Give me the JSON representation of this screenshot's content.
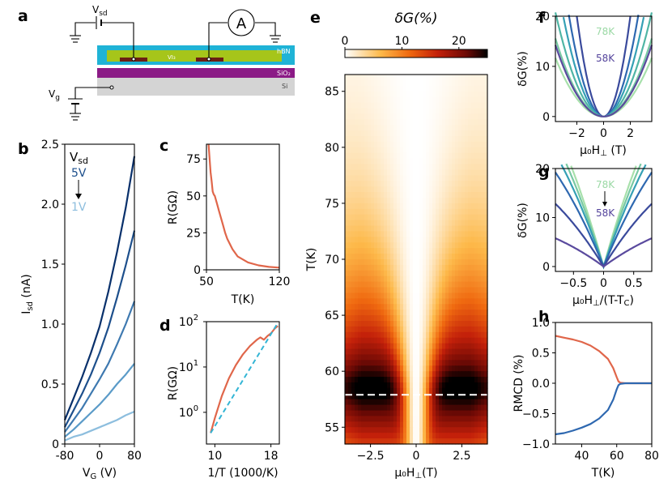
{
  "panel_letters": {
    "a": "a",
    "b": "b",
    "c": "c",
    "d": "d",
    "e": "e",
    "f": "f",
    "g": "g",
    "h": "h"
  },
  "schematic": {
    "vsd": "V",
    "vsd_sub": "sd",
    "vg": "V",
    "vg_sub": "g",
    "ammeter": "A",
    "layers": [
      {
        "name": "hBN",
        "color": "#1fb3d6"
      },
      {
        "name": "VI₃",
        "color": "#a6c51a"
      },
      {
        "name": "SiO₂",
        "color": "#8b1a86"
      },
      {
        "name": "Si",
        "color": "#b4b4b4"
      }
    ],
    "electrode_color": "#6b1f13"
  },
  "chart_data": [
    {
      "id": "b",
      "type": "line",
      "xlabel": "V",
      "xlabel_sub": "G",
      "xlabel_unit": " (V)",
      "ylabel": "I",
      "ylabel_sub": "sd",
      "ylabel_unit": " (nA)",
      "xlim": [
        -80,
        80
      ],
      "ylim": [
        0,
        2.5
      ],
      "xticks": [
        -80,
        0,
        80
      ],
      "yticks": [
        0,
        0.5,
        1.0,
        1.5,
        2.0,
        2.5
      ],
      "ytick_labels": [
        "0",
        "0.5",
        "1.0",
        "1.5",
        "2.0",
        "2.5"
      ],
      "legend": {
        "title": "V",
        "title_sub": "sd",
        "top": "5V",
        "bottom": "1V"
      },
      "series": [
        {
          "label": "5V",
          "color": "#08306b",
          "x": [
            -80,
            -60,
            -40,
            -20,
            0,
            20,
            40,
            60,
            80
          ],
          "y": [
            0.2,
            0.38,
            0.56,
            0.76,
            0.98,
            1.27,
            1.6,
            1.97,
            2.4
          ]
        },
        {
          "color": "#1d4f8c",
          "x": [
            -80,
            -60,
            -40,
            -20,
            0,
            20,
            40,
            60,
            80
          ],
          "y": [
            0.14,
            0.28,
            0.42,
            0.58,
            0.76,
            0.97,
            1.22,
            1.49,
            1.78
          ]
        },
        {
          "color": "#3e79b0",
          "x": [
            -80,
            -60,
            -40,
            -20,
            0,
            20,
            40,
            60,
            80
          ],
          "y": [
            0.1,
            0.2,
            0.3,
            0.42,
            0.54,
            0.67,
            0.83,
            1.0,
            1.19
          ]
        },
        {
          "color": "#5b9bc8",
          "x": [
            -80,
            -60,
            -40,
            -20,
            0,
            20,
            40,
            60,
            80
          ],
          "y": [
            0.06,
            0.12,
            0.19,
            0.26,
            0.33,
            0.41,
            0.5,
            0.58,
            0.67
          ]
        },
        {
          "label": "1V",
          "color": "#8dbede",
          "x": [
            -80,
            -60,
            -40,
            -20,
            0,
            20,
            40,
            60,
            80
          ],
          "y": [
            0.03,
            0.06,
            0.08,
            0.11,
            0.14,
            0.17,
            0.2,
            0.24,
            0.27
          ]
        }
      ]
    },
    {
      "id": "c",
      "type": "line",
      "xlabel": "T(K)",
      "ylabel": "R(GΩ)",
      "xlim": [
        50,
        120
      ],
      "ylim": [
        0,
        85
      ],
      "xticks": [
        50,
        120
      ],
      "yticks": [
        0,
        25,
        50,
        75
      ],
      "series": [
        {
          "color": "#e0664a",
          "x": [
            52,
            53,
            54,
            55,
            56,
            57,
            58,
            60,
            62,
            64,
            66,
            68,
            70,
            75,
            80,
            90,
            100,
            110,
            120
          ],
          "y": [
            85,
            75,
            66,
            60,
            53,
            51,
            50,
            45,
            40,
            35,
            30,
            25,
            21,
            14,
            9,
            5,
            3,
            2,
            1.5
          ]
        }
      ]
    },
    {
      "id": "d",
      "type": "line",
      "xlabel": "1/T (1000/K)",
      "ylabel": "R(GΩ)",
      "xlim": [
        8.8,
        19.2
      ],
      "yscale": "log",
      "ylim": [
        0.2,
        100
      ],
      "xticks": [
        10,
        18
      ],
      "yticks": [
        1,
        10,
        100
      ],
      "ytick_labels": [
        [
          "10",
          "0"
        ],
        [
          "10",
          "1"
        ],
        [
          "10",
          "2"
        ]
      ],
      "series": [
        {
          "color": "#e0664a",
          "x": [
            9.4,
            10,
            11,
            12,
            13,
            14,
            15,
            16,
            16.5,
            17,
            17.5,
            18,
            18.6,
            19
          ],
          "y": [
            0.35,
            0.75,
            2.3,
            5.6,
            11,
            19,
            29,
            40,
            45,
            40,
            48,
            55,
            72,
            80
          ]
        },
        {
          "color": "#33b5d5",
          "dash": true,
          "x": [
            9.4,
            19.0
          ],
          "y": [
            0.35,
            95
          ]
        }
      ]
    },
    {
      "id": "e",
      "type": "heatmap",
      "colorbar_label": "δG(%)",
      "colorbar_ticks": [
        0,
        10,
        20
      ],
      "crange": [
        0,
        25
      ],
      "colormap": "gist_heat_r",
      "xlabel": "μ₀H",
      "xlabel_sub": "⊥",
      "xlabel_unit": "(T)",
      "ylabel": "T(K)",
      "xlim": [
        -3.9,
        3.9
      ],
      "ylim": [
        53.5,
        86.5
      ],
      "xticks": [
        -2.5,
        0,
        2.5
      ],
      "xtick_labels": [
        "−2.5",
        "0",
        "2.5"
      ],
      "yticks": [
        55,
        60,
        65,
        70,
        75,
        80,
        85
      ],
      "dashed_line_T": 57.9
    },
    {
      "id": "f",
      "type": "line",
      "xlabel": "μ₀H",
      "xlabel_sub": "⊥",
      "xlabel_unit": " (T)",
      "ylabel": "δG(%)",
      "xlim": [
        -3.6,
        3.6
      ],
      "ylim": [
        -1,
        20
      ],
      "xticks": [
        -2,
        0,
        2
      ],
      "xtick_labels": [
        "−2",
        "0",
        "2"
      ],
      "yticks": [
        0,
        10,
        20
      ],
      "annotations": [
        {
          "text": "78K",
          "color": "#9bd9a5"
        },
        {
          "text": "58K",
          "color": "#54449c"
        }
      ],
      "series": [
        {
          "color": "#3a4a9c",
          "curv": 5.0
        },
        {
          "color": "#2e68b0",
          "curv": 3.0
        },
        {
          "color": "#35a0b5",
          "curv": 2.2
        },
        {
          "color": "#4fb5a4",
          "curv": 1.6
        },
        {
          "color": "#78c9a3",
          "curv": 1.2
        },
        {
          "color": "#a7e0ab",
          "curv": 0.9
        },
        {
          "color": "#5a4a9e",
          "curv": 1.1
        }
      ]
    },
    {
      "id": "g",
      "type": "line",
      "xlabel": "μ₀H",
      "xlabel_sub": "⊥",
      "xlabel_unit": "/(T-T",
      "xlabel_unit_sub": "C",
      "xlabel_end": ")",
      "ylabel": "δG(%)",
      "xlim": [
        -0.8,
        0.8
      ],
      "ylim": [
        -1,
        20
      ],
      "xticks": [
        -0.5,
        0,
        0.5
      ],
      "xtick_labels": [
        "−0.5",
        "0",
        "0.5"
      ],
      "yticks": [
        0,
        10,
        20
      ],
      "annotations": [
        {
          "text": "78K",
          "color": "#9bd9a5"
        },
        {
          "text": "58K",
          "color": "#54449c"
        }
      ],
      "series": [
        {
          "color": "#a7e0ab",
          "slope": 44
        },
        {
          "color": "#78c9a3",
          "slope": 40
        },
        {
          "color": "#35a0b5",
          "slope": 36
        },
        {
          "color": "#2e68b0",
          "slope": 30
        },
        {
          "color": "#3a4a9c",
          "slope": 20
        },
        {
          "color": "#5a4a9e",
          "slope": 9
        }
      ]
    },
    {
      "id": "h",
      "type": "line",
      "xlabel": "T(K)",
      "ylabel": "RMCD (%)",
      "xlim": [
        25,
        80
      ],
      "ylim": [
        -1.0,
        1.0
      ],
      "xticks": [
        40,
        60,
        80
      ],
      "yticks": [
        -1.0,
        -0.5,
        0.0,
        0.5,
        1.0
      ],
      "ytick_labels": [
        "−1.0",
        "−0.5",
        "0.0",
        "0.5",
        "1.0"
      ],
      "series": [
        {
          "color": "#e0664a",
          "x": [
            25,
            30,
            35,
            40,
            45,
            50,
            55,
            58,
            60,
            61,
            62,
            65,
            70,
            75,
            80
          ],
          "y": [
            0.78,
            0.75,
            0.72,
            0.68,
            0.62,
            0.53,
            0.4,
            0.25,
            0.1,
            0.03,
            0.01,
            0.0,
            0.0,
            0.0,
            0.0
          ]
        },
        {
          "color": "#2e68b0",
          "x": [
            25,
            30,
            35,
            40,
            45,
            50,
            55,
            58,
            60,
            61,
            62,
            65,
            70,
            75,
            80
          ],
          "y": [
            -0.84,
            -0.82,
            -0.78,
            -0.73,
            -0.67,
            -0.58,
            -0.44,
            -0.27,
            -0.1,
            -0.03,
            -0.01,
            0.0,
            0.0,
            0.0,
            0.0
          ]
        }
      ]
    }
  ]
}
